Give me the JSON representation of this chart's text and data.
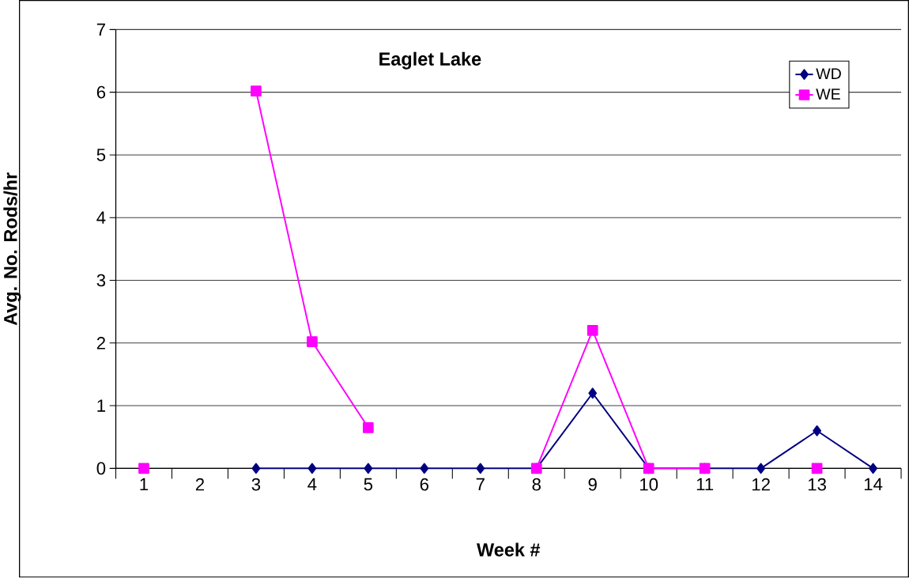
{
  "chart_data": {
    "type": "line",
    "title": "Eaglet Lake",
    "xlabel": "Week #",
    "ylabel": "Avg. No. Rods/hr",
    "categories": [
      "1",
      "2",
      "3",
      "4",
      "5",
      "6",
      "7",
      "8",
      "9",
      "10",
      "11",
      "12",
      "13",
      "14"
    ],
    "series": [
      {
        "name": "WD",
        "color": "#000080",
        "marker": "diamond",
        "values": [
          null,
          null,
          0,
          0,
          0,
          0,
          0,
          0,
          1.2,
          0,
          0,
          0,
          0.6,
          0
        ]
      },
      {
        "name": "WE",
        "color": "#ff00ff",
        "marker": "square",
        "values": [
          0,
          null,
          6.02,
          2.02,
          0.65,
          null,
          null,
          0,
          2.2,
          0,
          0,
          null,
          0,
          null
        ]
      }
    ],
    "ylim": [
      0,
      7
    ],
    "yticks": [
      0,
      1,
      2,
      3,
      4,
      5,
      6,
      7
    ],
    "grid": "y",
    "legend": "top right",
    "line_style": "solid"
  }
}
